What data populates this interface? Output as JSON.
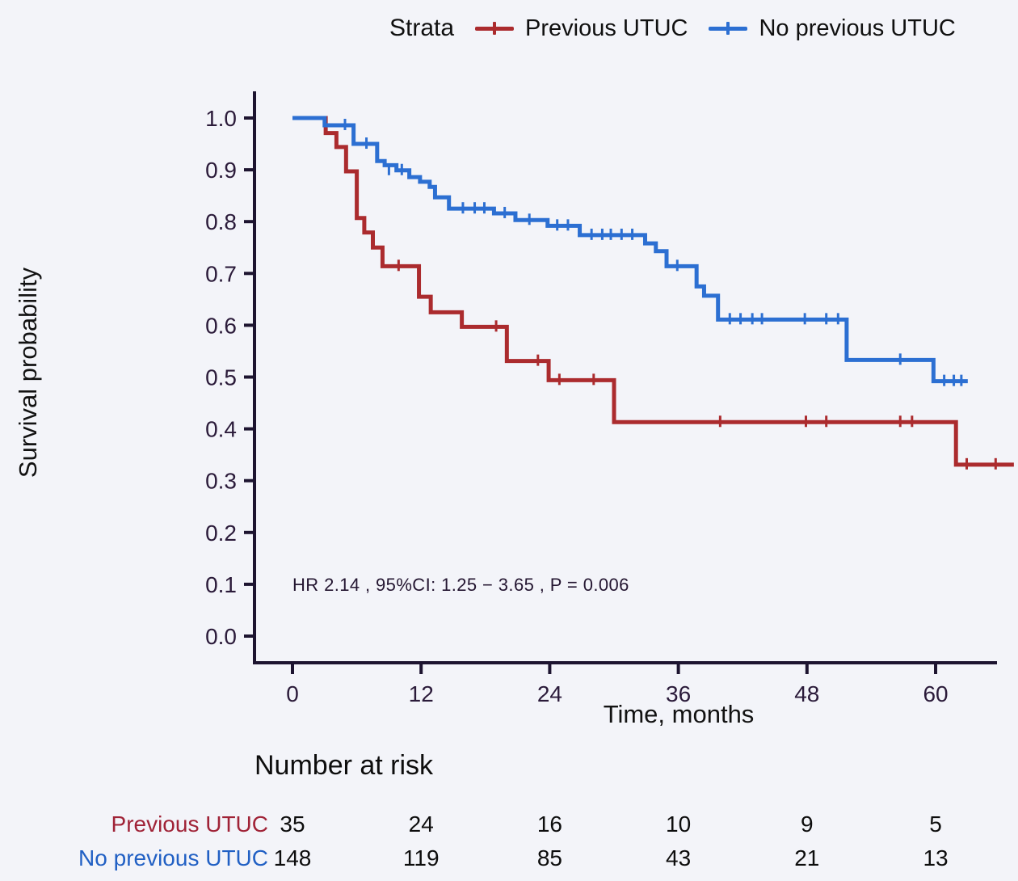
{
  "figure": {
    "background": "#f3f4f9",
    "legend": {
      "title": "Strata",
      "entries": [
        {
          "label": "Previous UTUC",
          "color": "#ab2b2e"
        },
        {
          "label": "No previous UTUC",
          "color": "#2c6fd2"
        }
      ]
    },
    "annotation": "HR  2.14 , 95%CI:  1.25 − 3.65 ,  P = 0.006"
  },
  "chart_data": {
    "type": "line",
    "subtype": "kaplan-meier-step",
    "title": "",
    "xlabel": "Time, months",
    "ylabel": "Survival probability",
    "xlim": [
      0,
      67.5
    ],
    "ylim": [
      0.0,
      1.0
    ],
    "xticks": [
      0,
      12,
      24,
      36,
      48,
      60
    ],
    "yticks": [
      1.0,
      0.9,
      0.8,
      0.7,
      0.6,
      0.5,
      0.4,
      0.3,
      0.2,
      0.1,
      0.0
    ],
    "grid": false,
    "legend_position": "top",
    "series": [
      {
        "name": "Previous UTUC",
        "color": "#ab2b2e",
        "n_start": 35,
        "steps": [
          [
            0,
            1.0
          ],
          [
            3.1,
            0.971
          ],
          [
            4.1,
            0.944
          ],
          [
            5.0,
            0.897
          ],
          [
            6.0,
            0.807
          ],
          [
            6.7,
            0.779
          ],
          [
            7.5,
            0.75
          ],
          [
            8.4,
            0.714
          ],
          [
            11.8,
            0.655
          ],
          [
            12.9,
            0.625
          ],
          [
            15.8,
            0.597
          ],
          [
            20.0,
            0.531
          ],
          [
            23.9,
            0.494
          ],
          [
            30.0,
            0.413
          ],
          [
            61.9,
            0.331
          ]
        ],
        "end_month": 67.3,
        "censor_marks": [
          [
            9.9,
            0.714
          ],
          [
            19.0,
            0.597
          ],
          [
            22.9,
            0.531
          ],
          [
            24.9,
            0.494
          ],
          [
            28.1,
            0.494
          ],
          [
            39.9,
            0.413
          ],
          [
            47.9,
            0.413
          ],
          [
            49.8,
            0.413
          ],
          [
            56.7,
            0.413
          ],
          [
            57.8,
            0.413
          ],
          [
            62.9,
            0.331
          ],
          [
            65.6,
            0.331
          ]
        ]
      },
      {
        "name": "No previous UTUC",
        "color": "#2c6fd2",
        "n_start": 148,
        "steps": [
          [
            0,
            1.0
          ],
          [
            3.0,
            0.986
          ],
          [
            5.7,
            0.95
          ],
          [
            7.9,
            0.917
          ],
          [
            8.6,
            0.909
          ],
          [
            9.7,
            0.899
          ],
          [
            10.9,
            0.886
          ],
          [
            11.9,
            0.877
          ],
          [
            12.8,
            0.867
          ],
          [
            13.3,
            0.847
          ],
          [
            14.6,
            0.825
          ],
          [
            18.8,
            0.816
          ],
          [
            20.8,
            0.803
          ],
          [
            23.8,
            0.792
          ],
          [
            26.8,
            0.774
          ],
          [
            32.9,
            0.758
          ],
          [
            33.9,
            0.743
          ],
          [
            34.9,
            0.714
          ],
          [
            37.7,
            0.675
          ],
          [
            38.4,
            0.657
          ],
          [
            39.7,
            0.611
          ],
          [
            51.7,
            0.533
          ],
          [
            59.8,
            0.492
          ]
        ],
        "end_month": 63.0,
        "censor_marks": [
          [
            4.9,
            0.986
          ],
          [
            6.9,
            0.95
          ],
          [
            9.0,
            0.899
          ],
          [
            10.2,
            0.899
          ],
          [
            15.9,
            0.825
          ],
          [
            17.0,
            0.825
          ],
          [
            17.9,
            0.825
          ],
          [
            19.8,
            0.816
          ],
          [
            22.1,
            0.803
          ],
          [
            24.7,
            0.792
          ],
          [
            25.7,
            0.792
          ],
          [
            27.9,
            0.774
          ],
          [
            28.9,
            0.774
          ],
          [
            29.7,
            0.774
          ],
          [
            30.7,
            0.774
          ],
          [
            31.7,
            0.774
          ],
          [
            35.9,
            0.714
          ],
          [
            40.8,
            0.611
          ],
          [
            41.8,
            0.611
          ],
          [
            42.9,
            0.611
          ],
          [
            43.8,
            0.611
          ],
          [
            47.8,
            0.611
          ],
          [
            49.8,
            0.611
          ],
          [
            50.9,
            0.611
          ],
          [
            56.7,
            0.533
          ],
          [
            60.8,
            0.492
          ],
          [
            61.7,
            0.492
          ],
          [
            62.4,
            0.492
          ]
        ]
      }
    ]
  },
  "risk_table": {
    "title": "Number at risk",
    "time_points": [
      0,
      12,
      24,
      36,
      48,
      60
    ],
    "rows": [
      {
        "label": "Previous UTUC",
        "color": "#a02337",
        "values": [
          35,
          24,
          16,
          10,
          9,
          5
        ]
      },
      {
        "label": "No previous UTUC",
        "color": "#2160c4",
        "values": [
          148,
          119,
          85,
          43,
          21,
          13
        ]
      }
    ]
  }
}
